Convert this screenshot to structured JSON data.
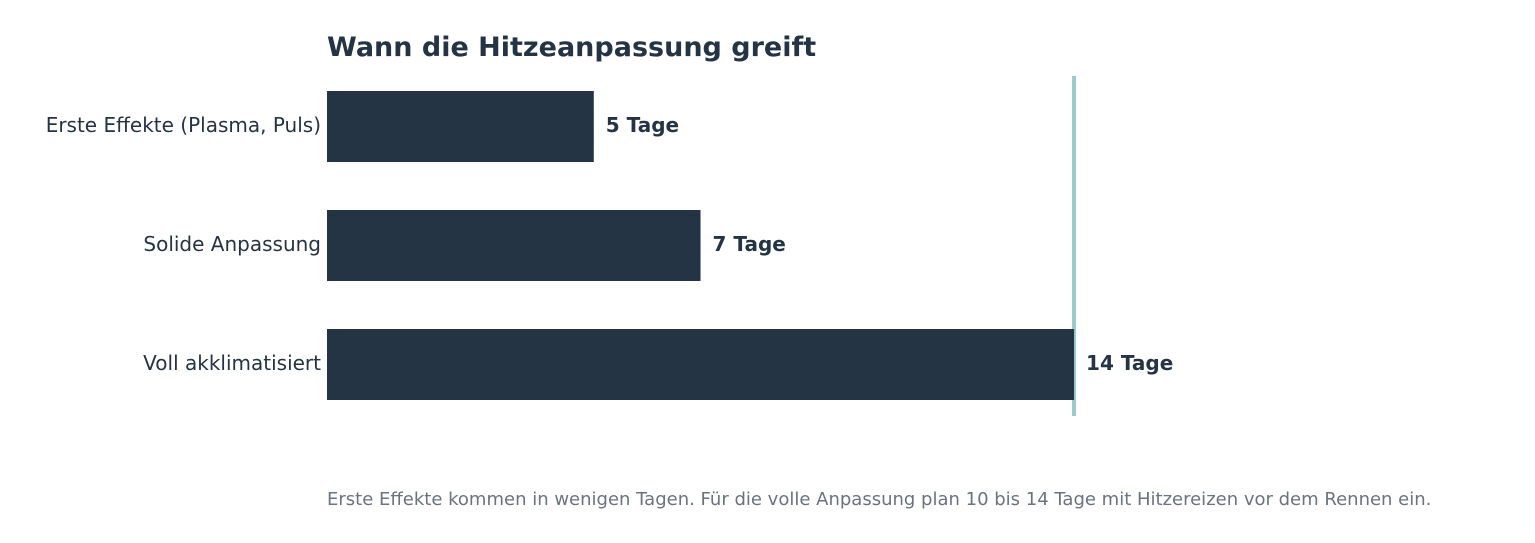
{
  "chart_data": {
    "type": "bar",
    "orientation": "horizontal",
    "title": "Wann die Hitzeanpassung greift",
    "xlabel": "",
    "ylabel": "",
    "categories": [
      "Erste Effekte (Plasma, Puls)",
      "Solide Anpassung",
      "Voll akklimatisiert"
    ],
    "values": [
      5,
      7,
      14
    ],
    "value_labels": [
      "5 Tage",
      "7 Tage",
      "14 Tage"
    ],
    "xlim": [
      0,
      14
    ],
    "reference_line": {
      "value": 14
    },
    "grid": false,
    "legend": "none",
    "caption": "Erste Effekte kommen in wenigen Tagen. Für die volle Anpassung plan 10 bis 14 Tage mit Hitzereizen vor dem Rennen ein."
  },
  "colors": {
    "bar": "#243444",
    "text": "#243444",
    "caption": "#6b7280",
    "reference_line": "#9ccbcb",
    "background": "#ffffff"
  }
}
